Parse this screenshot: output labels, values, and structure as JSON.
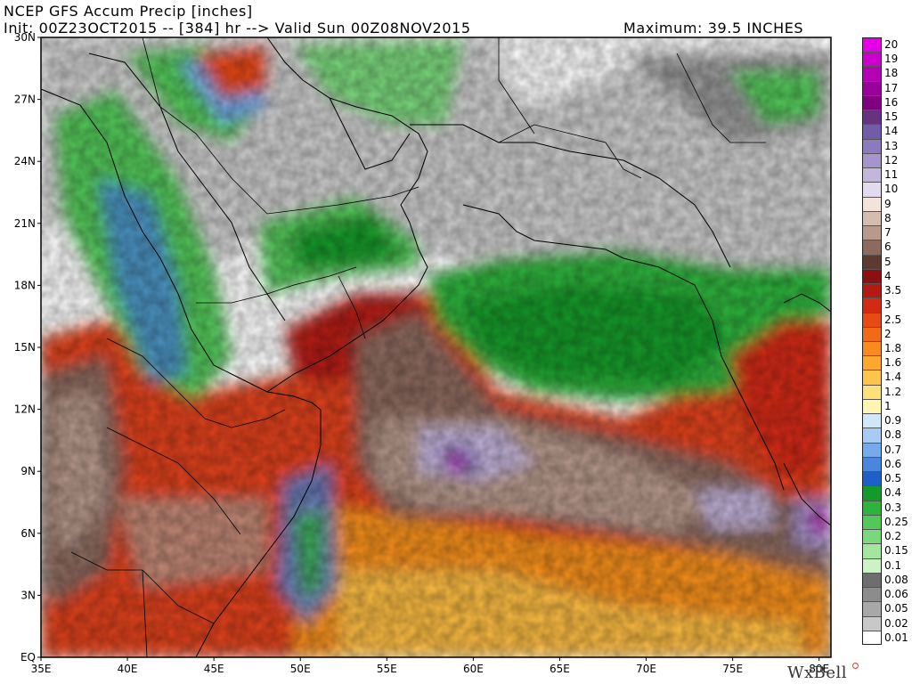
{
  "header": {
    "title": "NCEP GFS Accum Precip [inches]",
    "init": "Init: 00Z23OCT2015 -- [384] hr --> Valid Sun 00Z08NOV2015",
    "maximum": "Maximum: 39.5 INCHES"
  },
  "map": {
    "lat_labels": [
      "30N",
      "27N",
      "24N",
      "21N",
      "18N",
      "15N",
      "12N",
      "9N",
      "6N",
      "3N",
      "EQ"
    ],
    "lon_labels": [
      "35E",
      "40E",
      "45E",
      "50E",
      "55E",
      "60E",
      "65E",
      "70E",
      "75E",
      "80E"
    ]
  },
  "colorbar": {
    "levels": [
      {
        "label": "20",
        "color": "#e600e6"
      },
      {
        "label": "19",
        "color": "#cc00cc"
      },
      {
        "label": "18",
        "color": "#b300b3"
      },
      {
        "label": "17",
        "color": "#990099"
      },
      {
        "label": "16",
        "color": "#800080"
      },
      {
        "label": "15",
        "color": "#66337f"
      },
      {
        "label": "14",
        "color": "#735ca6"
      },
      {
        "label": "13",
        "color": "#8c7abf"
      },
      {
        "label": "12",
        "color": "#a694cc"
      },
      {
        "label": "11",
        "color": "#c4b5dd"
      },
      {
        "label": "10",
        "color": "#e2daee"
      },
      {
        "label": "9",
        "color": "#f2e4dc"
      },
      {
        "label": "8",
        "color": "#d4bcb0"
      },
      {
        "label": "7",
        "color": "#b89a8c"
      },
      {
        "label": "6",
        "color": "#8c6a5e"
      },
      {
        "label": "5",
        "color": "#5c3a30"
      },
      {
        "label": "4",
        "color": "#8b1010"
      },
      {
        "label": "3.5",
        "color": "#b41a12"
      },
      {
        "label": "3",
        "color": "#d42a14"
      },
      {
        "label": "2.5",
        "color": "#e84a14"
      },
      {
        "label": "2",
        "color": "#f26a18"
      },
      {
        "label": "1.8",
        "color": "#f88a1e"
      },
      {
        "label": "1.6",
        "color": "#fca82c"
      },
      {
        "label": "1.4",
        "color": "#fdc44a"
      },
      {
        "label": "1.2",
        "color": "#fde078"
      },
      {
        "label": "1",
        "color": "#fff6b4"
      },
      {
        "label": "0.9",
        "color": "#cfe6fb"
      },
      {
        "label": "0.8",
        "color": "#a6ccf3"
      },
      {
        "label": "0.7",
        "color": "#76aaea"
      },
      {
        "label": "0.6",
        "color": "#4a86dc"
      },
      {
        "label": "0.5",
        "color": "#1e5fc8"
      },
      {
        "label": "0.4",
        "color": "#149a2a"
      },
      {
        "label": "0.3",
        "color": "#2eb43c"
      },
      {
        "label": "0.25",
        "color": "#52c85a"
      },
      {
        "label": "0.2",
        "color": "#7ad87c"
      },
      {
        "label": "0.15",
        "color": "#a4e6a0"
      },
      {
        "label": "0.1",
        "color": "#cdf2c6"
      },
      {
        "label": "0.08",
        "color": "#6e6e6e"
      },
      {
        "label": "0.06",
        "color": "#8c8c8c"
      },
      {
        "label": "0.05",
        "color": "#a8a8a8"
      },
      {
        "label": "0.02",
        "color": "#c8c8c8"
      },
      {
        "label": "0.01",
        "color": "#ffffff"
      }
    ]
  },
  "logo": {
    "text": "WxBell"
  }
}
